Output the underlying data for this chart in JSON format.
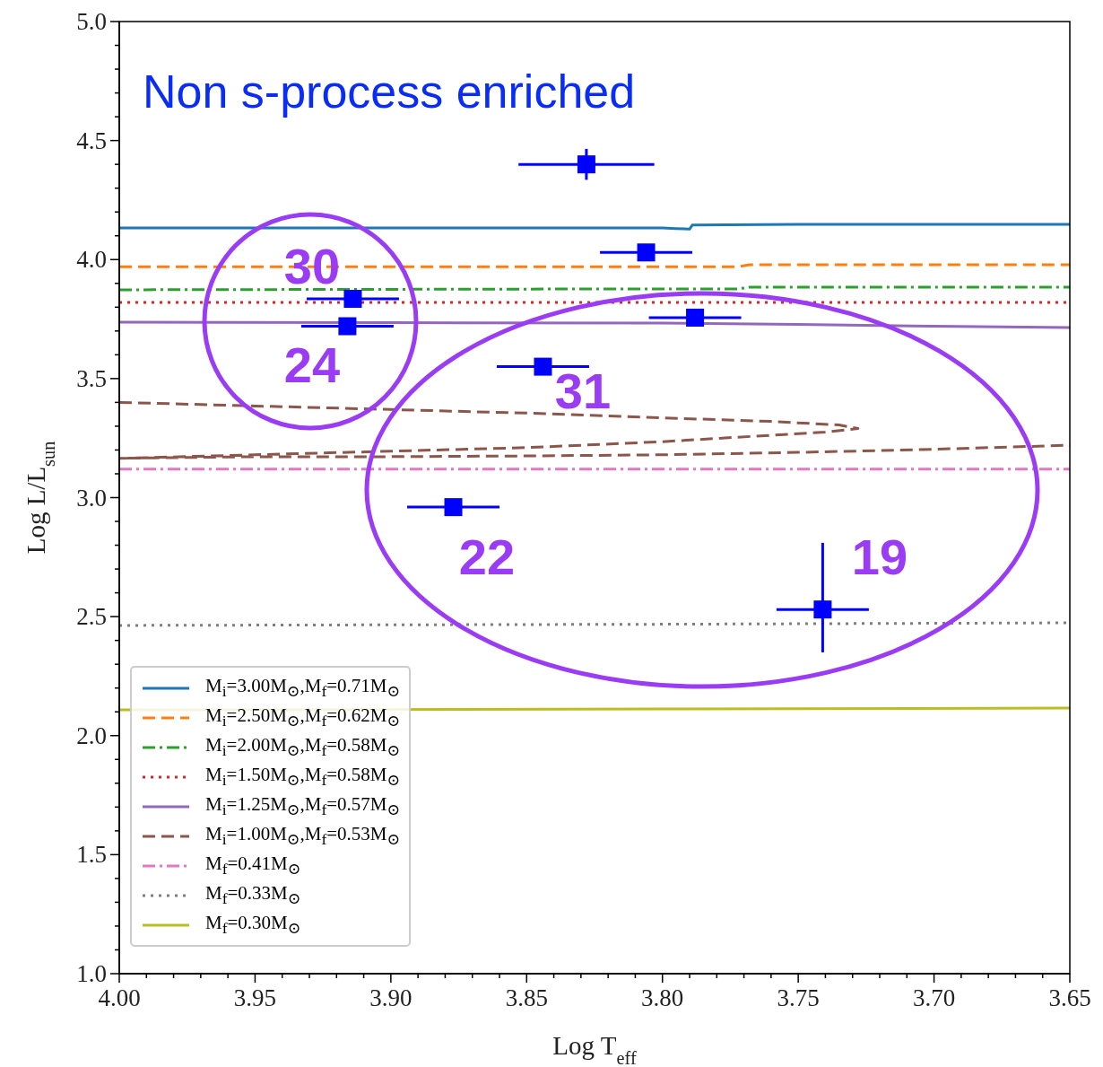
{
  "chart_data": {
    "type": "line",
    "title": "Non s-process enriched",
    "xlabel": "Log T$_{eff}$",
    "ylabel": "Log L/L$_{sun}$",
    "xlim": [
      4.0,
      3.65
    ],
    "ylim": [
      1.0,
      5.0
    ],
    "xticks": [
      {
        "value": 4.0,
        "label": "4.00"
      },
      {
        "value": 3.99,
        "label": null
      },
      {
        "value": 3.98,
        "label": null
      },
      {
        "value": 3.97,
        "label": null
      },
      {
        "value": 3.96,
        "label": null
      },
      {
        "value": 3.95,
        "label": "3.95"
      },
      {
        "value": 3.94,
        "label": null
      },
      {
        "value": 3.93,
        "label": null
      },
      {
        "value": 3.92,
        "label": null
      },
      {
        "value": 3.91,
        "label": null
      },
      {
        "value": 3.9,
        "label": "3.90"
      },
      {
        "value": 3.89,
        "label": null
      },
      {
        "value": 3.88,
        "label": null
      },
      {
        "value": 3.87,
        "label": null
      },
      {
        "value": 3.86,
        "label": null
      },
      {
        "value": 3.85,
        "label": "3.85"
      },
      {
        "value": 3.84,
        "label": null
      },
      {
        "value": 3.83,
        "label": null
      },
      {
        "value": 3.82,
        "label": null
      },
      {
        "value": 3.81,
        "label": null
      },
      {
        "value": 3.8,
        "label": "3.80"
      },
      {
        "value": 3.79,
        "label": null
      },
      {
        "value": 3.78,
        "label": null
      },
      {
        "value": 3.77,
        "label": null
      },
      {
        "value": 3.76,
        "label": null
      },
      {
        "value": 3.75,
        "label": "3.75"
      },
      {
        "value": 3.74,
        "label": null
      },
      {
        "value": 3.73,
        "label": null
      },
      {
        "value": 3.72,
        "label": null
      },
      {
        "value": 3.71,
        "label": null
      },
      {
        "value": 3.7,
        "label": "3.70"
      },
      {
        "value": 3.69,
        "label": null
      },
      {
        "value": 3.68,
        "label": null
      },
      {
        "value": 3.67,
        "label": null
      },
      {
        "value": 3.66,
        "label": null
      },
      {
        "value": 3.65,
        "label": "3.65"
      }
    ],
    "yticks": [
      {
        "value": 1.0,
        "label": "1.0"
      },
      {
        "value": 1.1,
        "label": null
      },
      {
        "value": 1.2,
        "label": null
      },
      {
        "value": 1.3,
        "label": null
      },
      {
        "value": 1.4,
        "label": null
      },
      {
        "value": 1.5,
        "label": "1.5"
      },
      {
        "value": 1.6,
        "label": null
      },
      {
        "value": 1.7,
        "label": null
      },
      {
        "value": 1.8,
        "label": null
      },
      {
        "value": 1.9,
        "label": null
      },
      {
        "value": 2.0,
        "label": "2.0"
      },
      {
        "value": 2.1,
        "label": null
      },
      {
        "value": 2.2,
        "label": null
      },
      {
        "value": 2.3,
        "label": null
      },
      {
        "value": 2.4,
        "label": null
      },
      {
        "value": 2.5,
        "label": "2.5"
      },
      {
        "value": 2.6,
        "label": null
      },
      {
        "value": 2.7,
        "label": null
      },
      {
        "value": 2.8,
        "label": null
      },
      {
        "value": 2.9,
        "label": null
      },
      {
        "value": 3.0,
        "label": "3.0"
      },
      {
        "value": 3.1,
        "label": null
      },
      {
        "value": 3.2,
        "label": null
      },
      {
        "value": 3.3,
        "label": null
      },
      {
        "value": 3.4,
        "label": null
      },
      {
        "value": 3.5,
        "label": "3.5"
      },
      {
        "value": 3.6,
        "label": null
      },
      {
        "value": 3.7,
        "label": null
      },
      {
        "value": 3.8,
        "label": null
      },
      {
        "value": 3.9,
        "label": null
      },
      {
        "value": 4.0,
        "label": "4.0"
      },
      {
        "value": 4.1,
        "label": null
      },
      {
        "value": 4.2,
        "label": null
      },
      {
        "value": 4.3,
        "label": null
      },
      {
        "value": 4.4,
        "label": null
      },
      {
        "value": 4.5,
        "label": "4.5"
      },
      {
        "value": 4.6,
        "label": null
      },
      {
        "value": 4.7,
        "label": null
      },
      {
        "value": 4.8,
        "label": null
      },
      {
        "value": 4.9,
        "label": null
      },
      {
        "value": 5.0,
        "label": "5.0"
      }
    ],
    "legend": "bottom left",
    "marker": "none",
    "series": [
      {
        "name": "M$_{i}$=3.00M$_{⊙}$,M$_{f}$=0.71M$_{⊙}$",
        "color": "#1f77b4",
        "line_style": "solid",
        "x": [
          4.0,
          3.9,
          3.8,
          3.795,
          3.79,
          3.789,
          3.75,
          3.65
        ],
        "values": [
          4.133,
          4.133,
          4.133,
          4.13,
          4.128,
          4.145,
          4.148,
          4.148
        ]
      },
      {
        "name": "M$_{i}$=2.50M$_{⊙}$,M$_{f}$=0.62M$_{⊙}$",
        "color": "#ff7f0e",
        "line_style": "dashed",
        "x": [
          4.0,
          3.9,
          3.8,
          3.772,
          3.768,
          3.65
        ],
        "values": [
          3.97,
          3.97,
          3.97,
          3.97,
          3.978,
          3.978
        ]
      },
      {
        "name": "M$_{i}$=2.00M$_{⊙}$,M$_{f}$=0.58M$_{⊙}$",
        "color": "#2ca02c",
        "line_style": "dashdot",
        "x": [
          4.0,
          3.9,
          3.8,
          3.772,
          3.768,
          3.65
        ],
        "values": [
          3.873,
          3.875,
          3.877,
          3.877,
          3.884,
          3.884
        ]
      },
      {
        "name": "M$_{i}$=1.50M$_{⊙}$,M$_{f}$=0.58M$_{⊙}$",
        "color": "#d62728",
        "line_style": "dotted",
        "x": [
          4.0,
          3.8,
          3.65
        ],
        "values": [
          3.82,
          3.82,
          3.82
        ]
      },
      {
        "name": "M$_{i}$=1.25M$_{⊙}$,M$_{f}$=0.57M$_{⊙}$",
        "color": "#9467bd",
        "line_style": "solid",
        "x": [
          4.0,
          3.9,
          3.8,
          3.75,
          3.7,
          3.65
        ],
        "values": [
          3.737,
          3.735,
          3.733,
          3.728,
          3.72,
          3.714
        ]
      },
      {
        "name": "M$_{i}$=1.00M$_{⊙}$,M$_{f}$=0.53M$_{⊙}$",
        "color": "#8c564b",
        "line_style": "dashed",
        "x": [
          4.0,
          3.95,
          3.9,
          3.85,
          3.8,
          3.76,
          3.735,
          3.728,
          3.74,
          3.76,
          3.8,
          3.85,
          3.9,
          3.95,
          4.0,
          3.95,
          3.9,
          3.85,
          3.8,
          3.75,
          3.7,
          3.65
        ],
        "values": [
          3.4,
          3.385,
          3.37,
          3.355,
          3.335,
          3.32,
          3.305,
          3.29,
          3.275,
          3.262,
          3.235,
          3.21,
          3.195,
          3.18,
          3.165,
          3.172,
          3.172,
          3.175,
          3.18,
          3.19,
          3.203,
          3.22
        ]
      },
      {
        "name": "M$_{f}$=0.41M$_{⊙}$",
        "color": "#e377c2",
        "line_style": "dashdot",
        "x": [
          4.0,
          3.8,
          3.65
        ],
        "values": [
          3.12,
          3.12,
          3.12
        ]
      },
      {
        "name": "M$_{f}$=0.33M$_{⊙}$",
        "color": "#7f7f7f",
        "line_style": "dotted",
        "x": [
          4.0,
          3.8,
          3.65
        ],
        "values": [
          2.463,
          2.468,
          2.474
        ]
      },
      {
        "name": "M$_{f}$=0.30M$_{⊙}$",
        "color": "#bcbd22",
        "line_style": "solid",
        "x": [
          4.0,
          3.8,
          3.65
        ],
        "values": [
          2.108,
          2.112,
          2.116
        ]
      },
      {
        "type": "scatter",
        "color": "#0000ff",
        "marker": "square",
        "x": [
          3.828,
          3.806,
          3.788,
          3.914,
          3.916,
          3.844,
          3.877,
          3.741
        ],
        "values": [
          4.4,
          4.03,
          3.756,
          3.835,
          3.72,
          3.55,
          2.96,
          2.53
        ],
        "errors": [
          0.065,
          null,
          null,
          null,
          null,
          null,
          null,
          [
            2.35,
            2.81
          ]
        ],
        "xerrors": [
          0.025,
          0.017,
          0.017,
          0.017,
          0.017,
          0.017,
          0.017,
          0.017
        ]
      }
    ],
    "annotations": [
      "30",
      "24",
      "31",
      "22",
      "19"
    ]
  }
}
